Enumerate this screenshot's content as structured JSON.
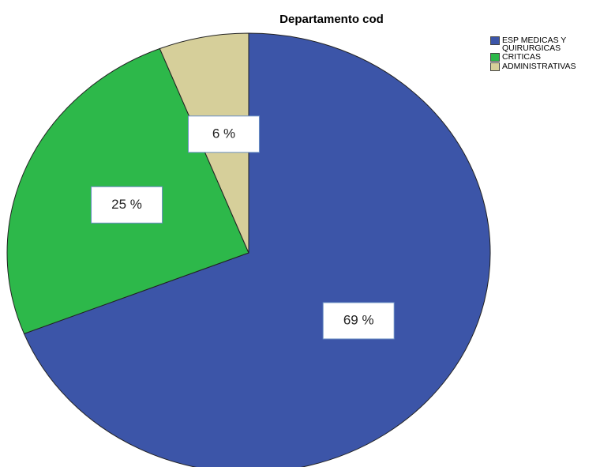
{
  "chart_data": {
    "type": "pie",
    "title": "Departamento cod",
    "categories": [
      "ESP MEDICAS Y QUIRURGICAS",
      "CRITICAS",
      "ADMINISTRATIVAS"
    ],
    "values": [
      69,
      25,
      6
    ],
    "value_labels": [
      "69 %",
      "25 %",
      "6 %"
    ],
    "colors": [
      "#3c55a8",
      "#2db84a",
      "#d6cf9a"
    ],
    "legend": "top-right"
  }
}
